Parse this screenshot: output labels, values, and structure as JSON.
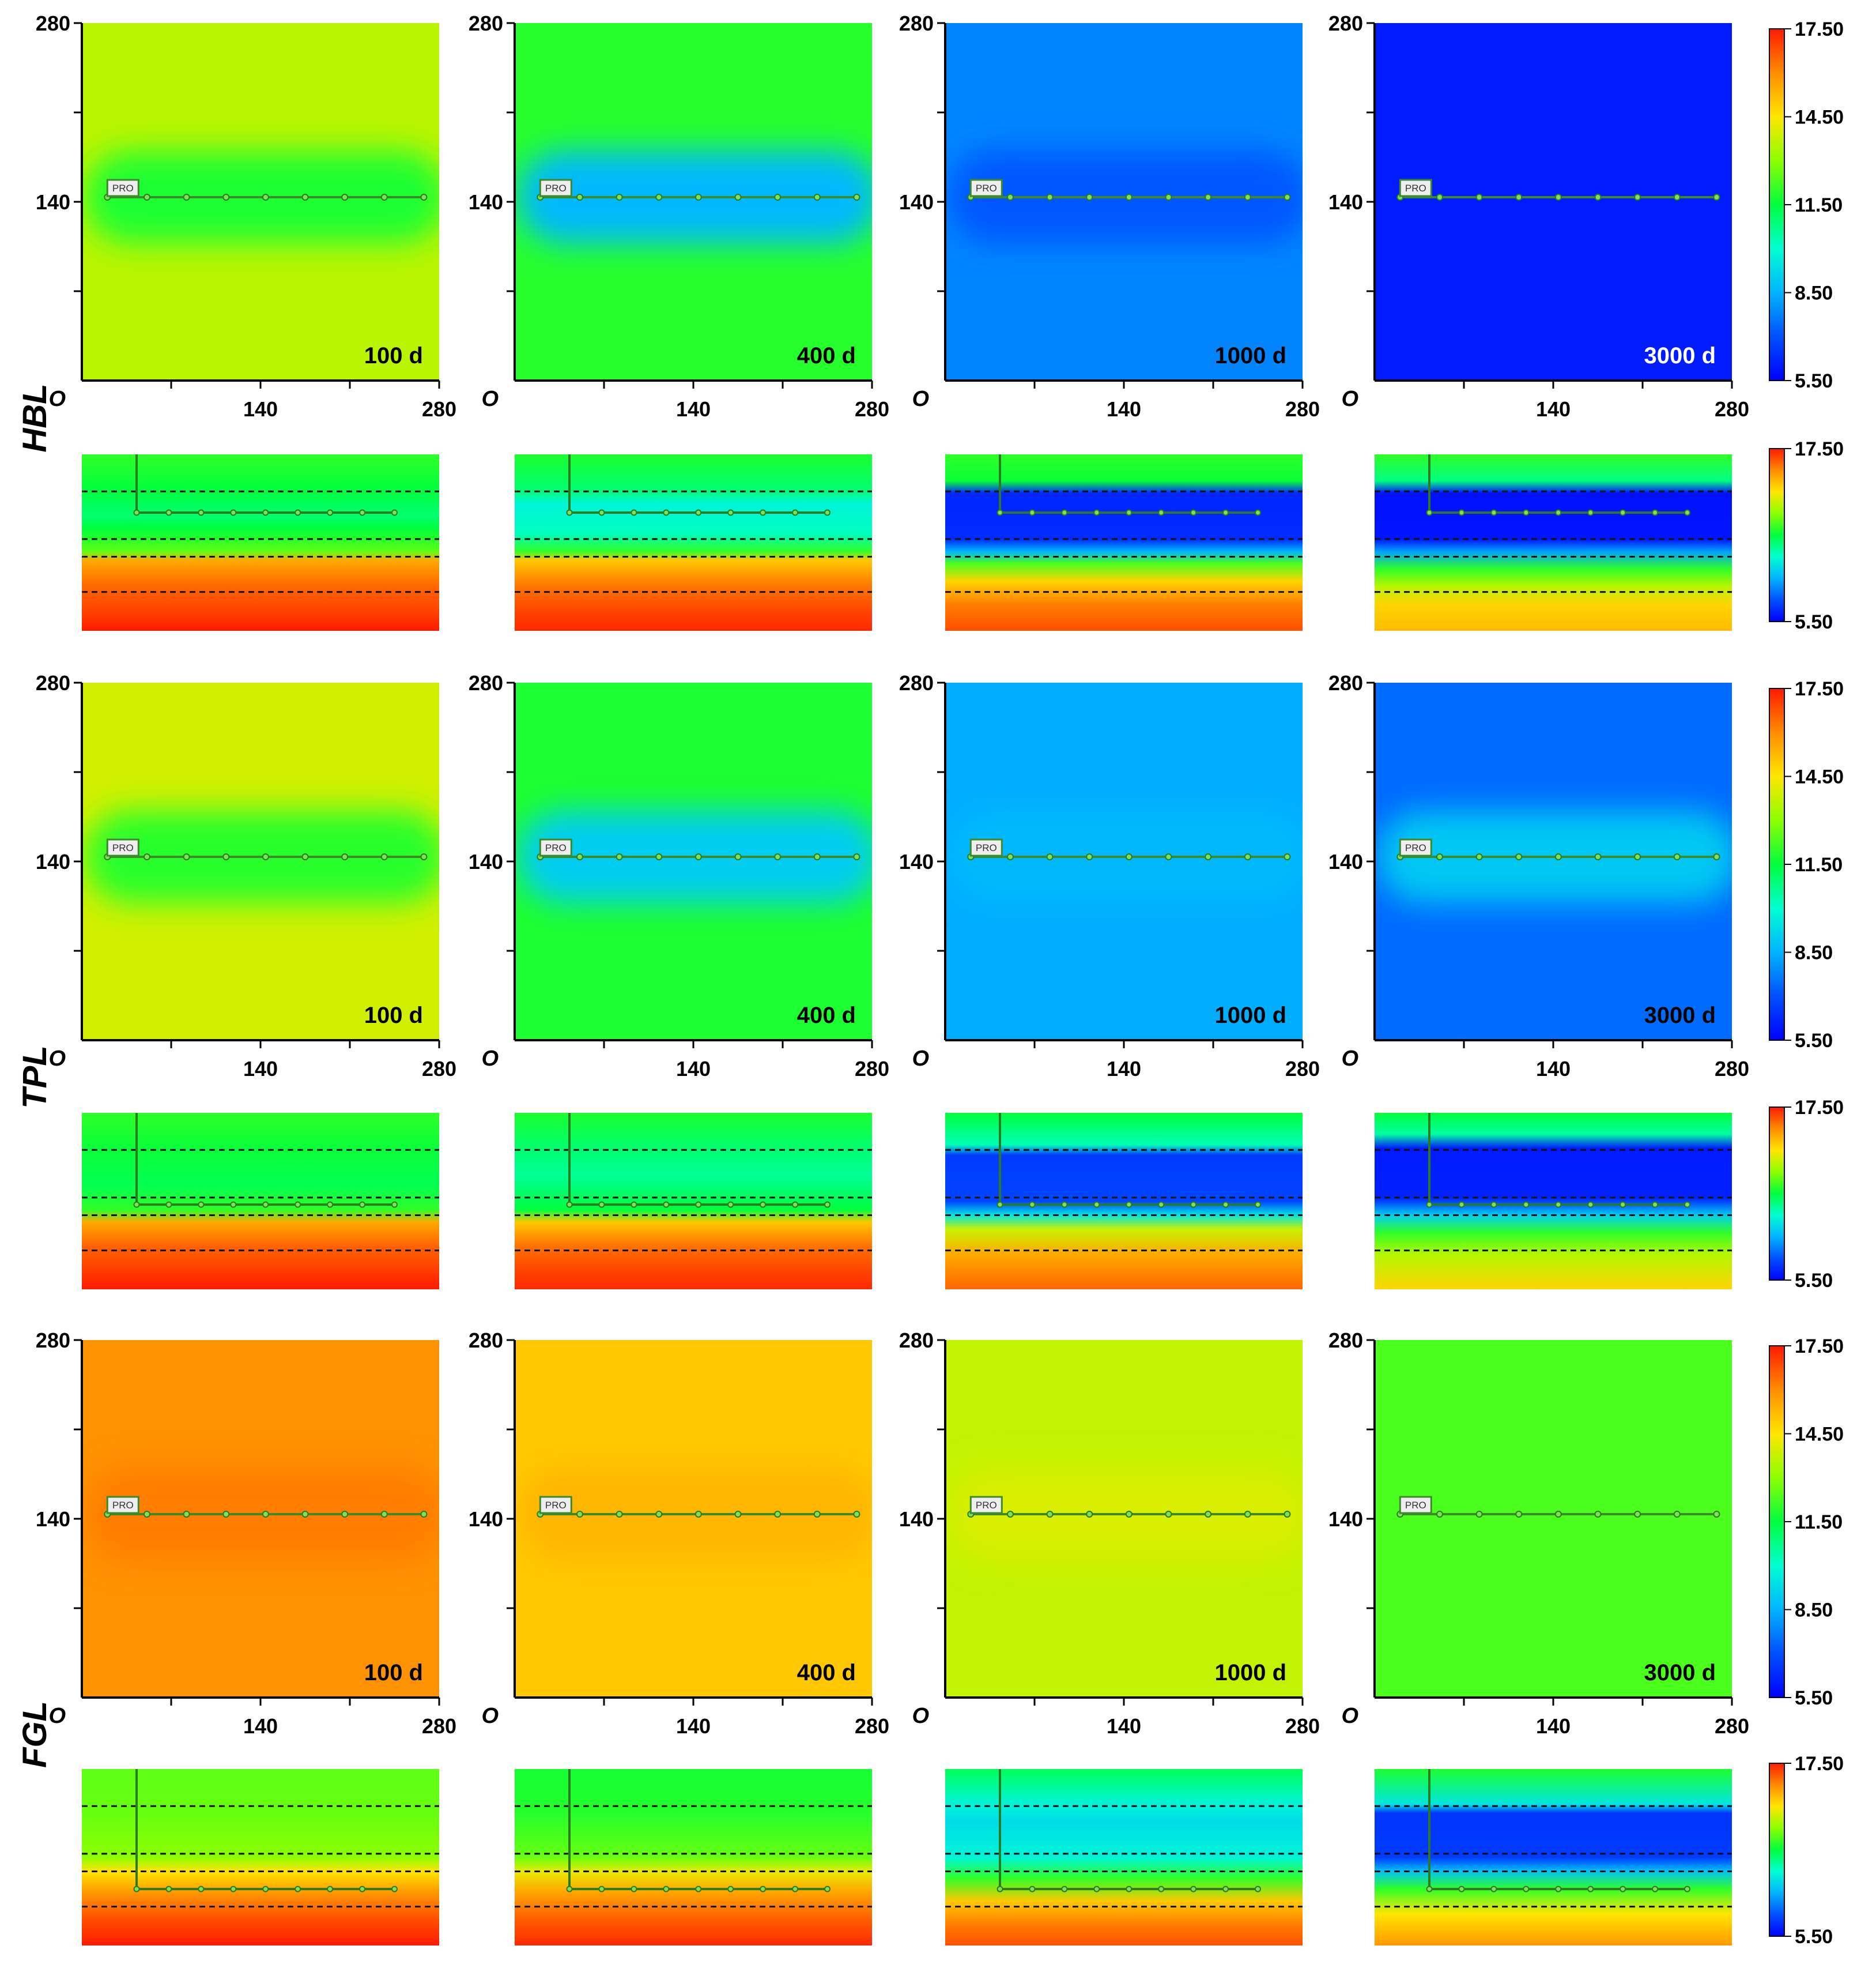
{
  "chart_data": {
    "type": "heatmap",
    "description_of_panels": "plan-view maps (x 0-280, y 0-280) and cross-sections for three well layouts at four times",
    "layouts": [
      "HBL",
      "TPL",
      "FGL"
    ],
    "times": [
      "100 d",
      "400 d",
      "1000 d",
      "3000 d"
    ],
    "plan_axes": {
      "xlim": [
        0,
        280
      ],
      "ylim": [
        0,
        280
      ],
      "x_ticks": [
        140,
        280
      ],
      "y_ticks": [
        140,
        280
      ],
      "origin_label": "O"
    },
    "colorbar": {
      "min": 5.5,
      "max": 17.5,
      "tick_labels": [
        "17.50",
        "14.50",
        "11.50",
        "8.50",
        "5.50"
      ],
      "colors": [
        "#ff1a00",
        "#ff8c00",
        "#ffe600",
        "#8cff00",
        "#00ff3c",
        "#00ffd2",
        "#00b4ff",
        "#0050ff",
        "#0000ff"
      ]
    },
    "well_label": "PRO",
    "plan_background_value": [
      [
        13.6,
        11.9,
        7.8,
        6.0
      ],
      [
        13.9,
        11.8,
        8.4,
        7.4
      ],
      [
        15.9,
        15.0,
        13.7,
        12.3
      ]
    ],
    "plan_zone_value": [
      [
        11.8,
        8.6,
        7.1,
        null
      ],
      [
        11.9,
        9.0,
        8.6,
        8.9
      ],
      [
        16.2,
        15.3,
        14.0,
        null
      ]
    ],
    "section_layers": [
      [
        [
          [
            0.0,
            12.0
          ],
          [
            0.2,
            11.5
          ],
          [
            0.35,
            11.0
          ],
          [
            0.42,
            11.5
          ],
          [
            0.55,
            12.5
          ],
          [
            0.6,
            15.5
          ],
          [
            0.75,
            16.5
          ],
          [
            0.9,
            17.0
          ],
          [
            1.0,
            17.5
          ]
        ],
        [
          [
            0.0,
            11.8
          ],
          [
            0.2,
            11.0
          ],
          [
            0.28,
            9.8
          ],
          [
            0.45,
            10.2
          ],
          [
            0.55,
            12.0
          ],
          [
            0.6,
            15.0
          ],
          [
            0.75,
            16.3
          ],
          [
            0.9,
            17.0
          ],
          [
            1.0,
            17.3
          ]
        ],
        [
          [
            0.0,
            12.0
          ],
          [
            0.15,
            11.6
          ],
          [
            0.22,
            6.2
          ],
          [
            0.48,
            6.3
          ],
          [
            0.55,
            8.5
          ],
          [
            0.62,
            12.3
          ],
          [
            0.72,
            14.8
          ],
          [
            0.85,
            16.2
          ],
          [
            1.0,
            16.8
          ]
        ],
        [
          [
            0.0,
            12.0
          ],
          [
            0.15,
            10.8
          ],
          [
            0.22,
            5.8
          ],
          [
            0.48,
            5.9
          ],
          [
            0.55,
            8.2
          ],
          [
            0.65,
            12.0
          ],
          [
            0.75,
            13.6
          ],
          [
            0.85,
            14.8
          ],
          [
            1.0,
            15.2
          ]
        ]
      ],
      [
        [
          [
            0.0,
            12.0
          ],
          [
            0.2,
            11.6
          ],
          [
            0.4,
            11.3
          ],
          [
            0.55,
            12.0
          ],
          [
            0.62,
            15.5
          ],
          [
            0.75,
            16.5
          ],
          [
            0.88,
            17.0
          ],
          [
            1.0,
            17.5
          ]
        ],
        [
          [
            0.0,
            11.8
          ],
          [
            0.2,
            11.0
          ],
          [
            0.35,
            10.6
          ],
          [
            0.55,
            11.5
          ],
          [
            0.62,
            15.0
          ],
          [
            0.75,
            16.3
          ],
          [
            0.88,
            16.9
          ],
          [
            1.0,
            17.3
          ]
        ],
        [
          [
            0.0,
            11.5
          ],
          [
            0.18,
            10.3
          ],
          [
            0.24,
            6.6
          ],
          [
            0.5,
            6.8
          ],
          [
            0.58,
            9.5
          ],
          [
            0.66,
            13.8
          ],
          [
            0.8,
            15.5
          ],
          [
            1.0,
            16.5
          ]
        ],
        [
          [
            0.0,
            11.5
          ],
          [
            0.12,
            10.5
          ],
          [
            0.2,
            6.0
          ],
          [
            0.48,
            6.1
          ],
          [
            0.58,
            9.0
          ],
          [
            0.68,
            12.0
          ],
          [
            0.8,
            13.5
          ],
          [
            1.0,
            14.8
          ]
        ]
      ],
      [
        [
          [
            0.0,
            12.5
          ],
          [
            0.25,
            12.6
          ],
          [
            0.5,
            13.0
          ],
          [
            0.58,
            14.5
          ],
          [
            0.7,
            15.8
          ],
          [
            0.85,
            16.8
          ],
          [
            1.0,
            17.5
          ]
        ],
        [
          [
            0.0,
            11.7
          ],
          [
            0.25,
            11.9
          ],
          [
            0.5,
            12.6
          ],
          [
            0.58,
            14.2
          ],
          [
            0.7,
            15.6
          ],
          [
            0.85,
            16.6
          ],
          [
            1.0,
            17.3
          ]
        ],
        [
          [
            0.0,
            11.2
          ],
          [
            0.2,
            9.8
          ],
          [
            0.3,
            9.3
          ],
          [
            0.5,
            9.8
          ],
          [
            0.62,
            12.0
          ],
          [
            0.75,
            15.0
          ],
          [
            0.9,
            16.3
          ],
          [
            1.0,
            16.8
          ]
        ],
        [
          [
            0.0,
            11.8
          ],
          [
            0.2,
            9.5
          ],
          [
            0.25,
            6.5
          ],
          [
            0.5,
            6.6
          ],
          [
            0.58,
            8.8
          ],
          [
            0.68,
            12.0
          ],
          [
            0.82,
            14.5
          ],
          [
            1.0,
            15.8
          ]
        ]
      ]
    ]
  }
}
